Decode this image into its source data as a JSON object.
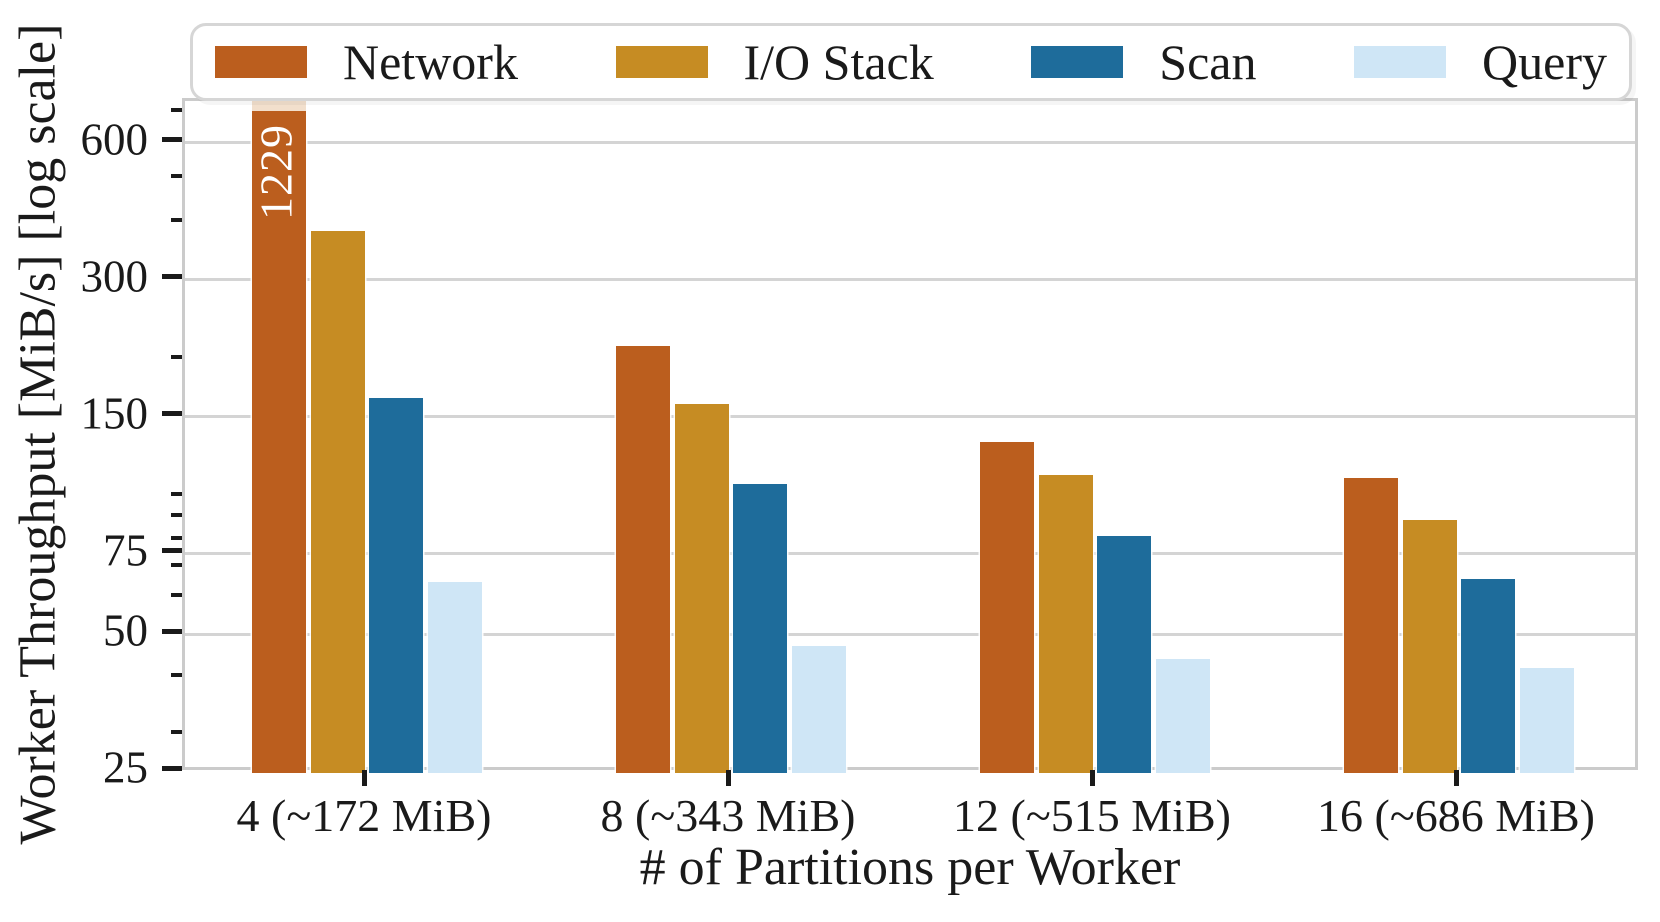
{
  "chart_data": {
    "type": "bar",
    "title": "",
    "xlabel": "# of Partitions per Worker",
    "ylabel": "Worker Throughput [MiB/s] [log scale]",
    "yscale": "log",
    "ylim": [
      25,
      742
    ],
    "yticks": [
      25,
      50,
      75,
      150,
      300,
      600
    ],
    "minor_yticks": [
      30,
      40,
      60,
      70,
      80,
      90,
      100,
      200,
      400,
      500,
      700
    ],
    "categories": [
      "4 (~172 MiB)",
      "8 (~343 MiB)",
      "12 (~515 MiB)",
      "16 (~686 MiB)"
    ],
    "series": [
      {
        "name": "Network",
        "color": "#BB5E1E",
        "values": [
          1229,
          215,
          132,
          110
        ]
      },
      {
        "name": "I/O Stack",
        "color": "#C68C23",
        "values": [
          385,
          160,
          112,
          89
        ]
      },
      {
        "name": "Scan",
        "color": "#1E6C9B",
        "values": [
          165,
          107,
          82,
          66
        ]
      },
      {
        "name": "Query",
        "color": "#CFE6F6",
        "values": [
          65,
          47,
          44,
          42
        ]
      }
    ],
    "bar_labels": [
      {
        "series_index": 0,
        "category_index": 0,
        "text": "1229",
        "color": "#FFFFFF"
      }
    ],
    "legend": {
      "position": "top",
      "labels": [
        "Network",
        "I/O Stack",
        "Scan",
        "Query"
      ]
    },
    "grid": "horizontal-major",
    "colors": {
      "grid": "#D4D4D4",
      "spine": "#CBCBCB",
      "tick": "#1A1A1A",
      "text": "#1A1A1A",
      "clipped_bar_cap": "#F2DFCC"
    }
  }
}
